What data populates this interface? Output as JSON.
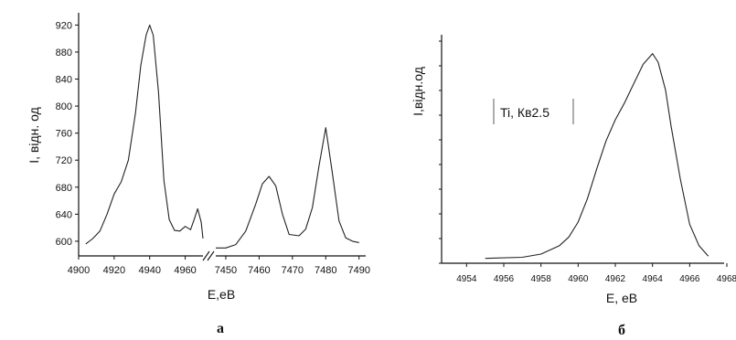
{
  "chart_data": [
    {
      "type": "line",
      "caption": "а",
      "xlabel": "E,eB",
      "ylabel": "I, відн. од",
      "ylim": [
        585,
        930
      ],
      "broken_x_axis": true,
      "segments": [
        {
          "xlim": [
            4900,
            4970
          ],
          "x_ticks": [
            "4900",
            "4920",
            "4940",
            "4960"
          ],
          "x": [
            4904,
            4908,
            4912,
            4916,
            4920,
            4924,
            4928,
            4932,
            4935,
            4938,
            4940,
            4942,
            4945,
            4948,
            4951,
            4954,
            4957,
            4960,
            4963,
            4965,
            4967,
            4969,
            4970
          ],
          "y": [
            596,
            604,
            615,
            640,
            670,
            688,
            720,
            790,
            860,
            905,
            920,
            905,
            820,
            690,
            632,
            616,
            615,
            622,
            617,
            632,
            648,
            628,
            604
          ]
        },
        {
          "xlim": [
            7447,
            7492
          ],
          "x_ticks": [
            "7450",
            "7460",
            "7470",
            "7480",
            "7490"
          ],
          "x": [
            7447,
            7450,
            7453,
            7456,
            7459,
            7461,
            7463,
            7465,
            7467,
            7469,
            7472,
            7474,
            7476,
            7478,
            7480,
            7482,
            7484,
            7486,
            7488,
            7490
          ],
          "y": [
            590,
            590,
            595,
            615,
            655,
            685,
            696,
            682,
            640,
            610,
            608,
            618,
            650,
            712,
            768,
            700,
            630,
            605,
            600,
            598
          ]
        }
      ],
      "y_ticks": [
        "600",
        "640",
        "680",
        "720",
        "760",
        "800",
        "840",
        "880",
        "920"
      ]
    },
    {
      "type": "line",
      "caption": "б",
      "xlabel": "E, eB",
      "ylabel": "I,відн.од",
      "annotation": "Ti, Кв2.5",
      "xlim": [
        4953,
        4968
      ],
      "x_ticks": [
        "4954",
        "4956",
        "4958",
        "4960",
        "4962",
        "4964",
        "4966",
        "4968"
      ],
      "ylim": [
        0,
        1.05
      ],
      "x": [
        4955,
        4957,
        4958,
        4959,
        4959.5,
        4960,
        4960.5,
        4961,
        4961.5,
        4962,
        4962.5,
        4963,
        4963.5,
        4964,
        4964.3,
        4964.7,
        4965,
        4965.5,
        4966,
        4966.5,
        4967
      ],
      "y": [
        0.01,
        0.015,
        0.03,
        0.07,
        0.11,
        0.18,
        0.29,
        0.43,
        0.56,
        0.66,
        0.74,
        0.83,
        0.92,
        0.97,
        0.93,
        0.8,
        0.63,
        0.38,
        0.17,
        0.07,
        0.02
      ]
    }
  ]
}
